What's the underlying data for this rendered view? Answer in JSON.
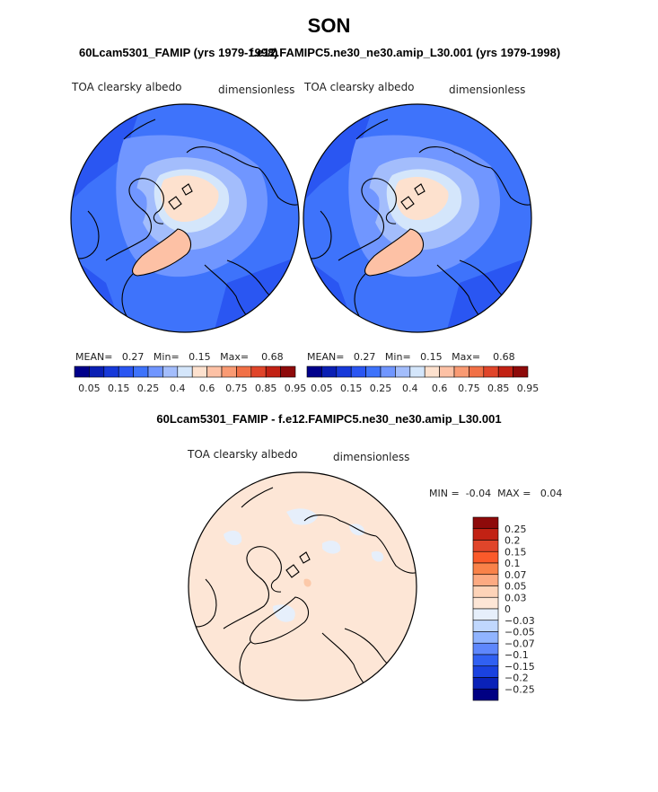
{
  "page": {
    "title": "SON",
    "left_subtitle": "60Lcam5301_FAMIP (yrs 1979-1998)",
    "right_subtitle": "f.e12.FAMIPC5.ne30_ne30.amip_L30.001 (yrs 1979-1998)",
    "diff_subtitle": "60Lcam5301_FAMIP - f.e12.FAMIPC5.ne30_ne30.amip_L30.001"
  },
  "chart_data": [
    {
      "type": "heatmap",
      "projection": "polar-stereographic-north",
      "variable": "TOA clearsky albedo",
      "units": "dimensionless",
      "stats": {
        "mean_label": "MEAN=",
        "mean": "0.27",
        "min_label": "Min=",
        "min": "0.15",
        "max_label": "Max=",
        "max": "0.68"
      },
      "colorbar": {
        "colors": [
          "#00008b",
          "#0a1fb4",
          "#1739d9",
          "#2a56f2",
          "#3e73fb",
          "#7096ff",
          "#a3bdfc",
          "#d4e6fb",
          "#fde1ce",
          "#fdc1a5",
          "#f99a73",
          "#f17046",
          "#e0452a",
          "#c22214",
          "#8e0a0a"
        ],
        "tick_labels": [
          "0.05",
          "0.15",
          "0.25",
          "0.4",
          "0.6",
          "0.75",
          "0.85",
          "0.95"
        ],
        "tick_boundaries": [
          1,
          3,
          5,
          7,
          9,
          11,
          13,
          15
        ]
      }
    },
    {
      "type": "heatmap",
      "projection": "polar-stereographic-north",
      "variable": "TOA clearsky albedo",
      "units": "dimensionless",
      "stats": {
        "mean_label": "MEAN=",
        "mean": "0.27",
        "min_label": "Min=",
        "min": "0.15",
        "max_label": "Max=",
        "max": "0.68"
      },
      "colorbar": {
        "colors": [
          "#00008b",
          "#0a1fb4",
          "#1739d9",
          "#2a56f2",
          "#3e73fb",
          "#7096ff",
          "#a3bdfc",
          "#d4e6fb",
          "#fde1ce",
          "#fdc1a5",
          "#f99a73",
          "#f17046",
          "#e0452a",
          "#c22214",
          "#8e0a0a"
        ],
        "tick_labels": [
          "0.05",
          "0.15",
          "0.25",
          "0.4",
          "0.6",
          "0.75",
          "0.85",
          "0.95"
        ],
        "tick_boundaries": [
          1,
          3,
          5,
          7,
          9,
          11,
          13,
          15
        ]
      }
    },
    {
      "type": "heatmap",
      "projection": "polar-stereographic-north",
      "variable": "TOA clearsky albedo",
      "units": "dimensionless",
      "stats": {
        "min_label": "MIN =",
        "min": "-0.04",
        "max_label": "MAX =",
        "max": "0.04"
      },
      "colorbar": {
        "orientation": "vertical",
        "colors_top_to_bottom": [
          "#8e0a0a",
          "#c22214",
          "#e0452a",
          "#fa5a2a",
          "#f98249",
          "#fcaa82",
          "#fdd3b8",
          "#fde6d6",
          "#e6effb",
          "#c0d7fd",
          "#90b4ff",
          "#5e87fc",
          "#3060f2",
          "#1a42e0",
          "#0a22b8",
          "#000083"
        ],
        "tick_labels_top_to_bottom": [
          "0.25",
          "0.2",
          "0.15",
          "0.1",
          "0.07",
          "0.05",
          "0.03",
          "0",
          "−0.03",
          "−0.05",
          "−0.07",
          "−0.1",
          "−0.15",
          "−0.2",
          "−0.25"
        ]
      }
    }
  ]
}
